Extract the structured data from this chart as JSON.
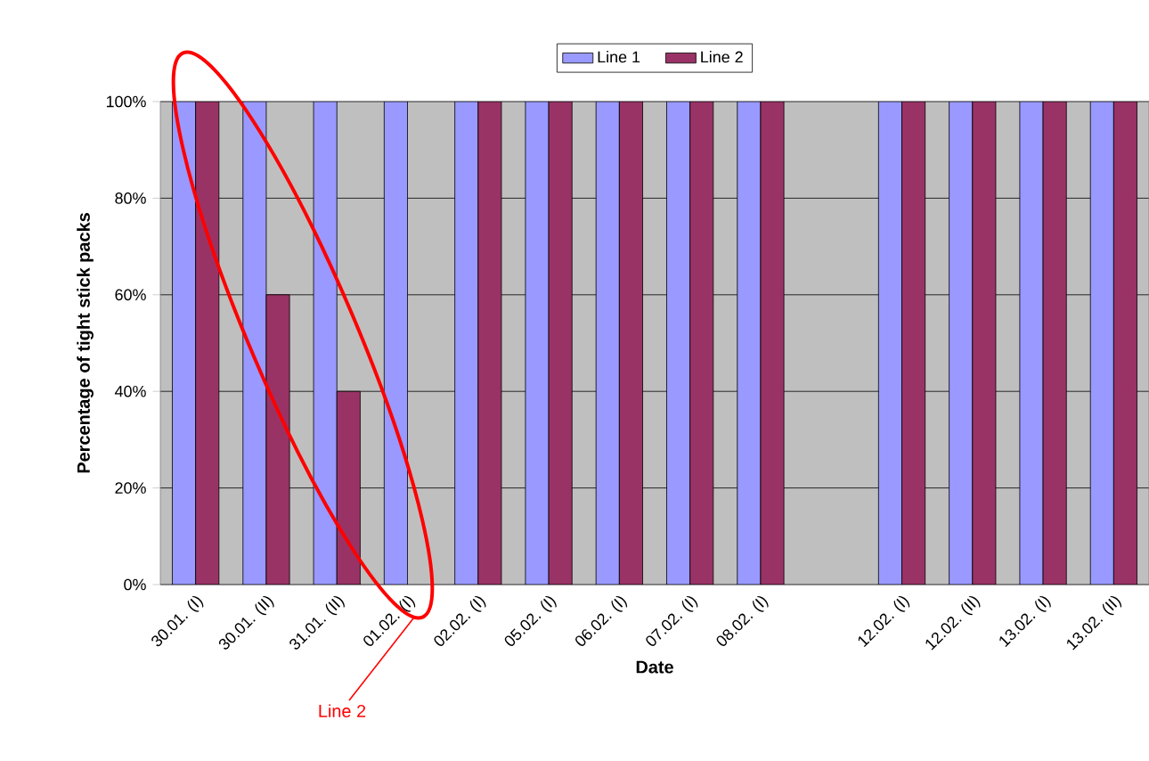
{
  "chart_data": {
    "type": "bar",
    "xlabel": "Date",
    "ylabel": "Percentage of tight stick packs",
    "categories": [
      "30.01. (I)",
      "30.01. (II)",
      "31.01. (II)",
      "01.02. (I)",
      "02.02. (I)",
      "05.02. (I)",
      "06.02. (I)",
      "07.02. (I)",
      "08.02. (I)",
      null,
      "12.02. (I)",
      "12.02. (II)",
      "13.02. (I)",
      "13.02. (II)"
    ],
    "series": [
      {
        "name": "Line 1",
        "color": "#9999ff",
        "values": [
          100,
          100,
          100,
          100,
          100,
          100,
          100,
          100,
          100,
          null,
          100,
          100,
          100,
          100
        ]
      },
      {
        "name": "Line 2",
        "color": "#993366",
        "values": [
          100,
          60,
          40,
          null,
          100,
          100,
          100,
          100,
          100,
          null,
          100,
          100,
          100,
          100
        ]
      }
    ],
    "ylim": [
      0,
      100
    ],
    "yticks": [
      {
        "value": 0,
        "label": "0%"
      },
      {
        "value": 20,
        "label": "20%"
      },
      {
        "value": 40,
        "label": "40%"
      },
      {
        "value": 60,
        "label": "60%"
      },
      {
        "value": 80,
        "label": "80%"
      },
      {
        "value": 100,
        "label": "100%"
      }
    ],
    "grid": "y",
    "legend": "top",
    "annotations": [
      "Line 2"
    ]
  }
}
